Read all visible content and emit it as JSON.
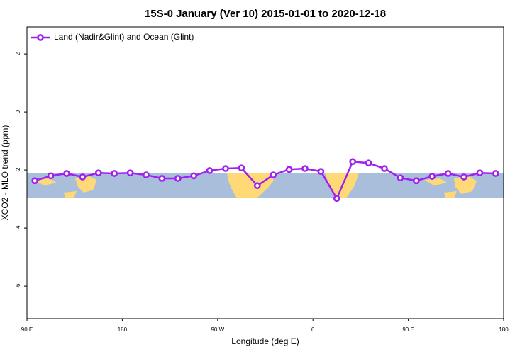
{
  "chart_data": {
    "type": "line",
    "title": "15S-0 January (Ver 10)   2015-01-01 to 2020-12-18",
    "x_label": "Longitude (deg E)",
    "y_label": "XCO2 - MLO trend (ppm)",
    "x": [
      97.5,
      112.5,
      127.5,
      142.5,
      157.5,
      172.5,
      187.5,
      202.5,
      217.5,
      232.5,
      247.5,
      262.5,
      277.5,
      292.5,
      307.5,
      322.5,
      337.5,
      352.5,
      367.5,
      382.5,
      397.5,
      412.5,
      427.5,
      442.5,
      457.5,
      472.5,
      487.5,
      502.5,
      517.5,
      532.5
    ],
    "series": [
      {
        "name": "Land (Nadir&Glint) and Ocean (Glint)",
        "color": "#a020f0",
        "values": [
          -2.37,
          -2.2,
          -2.12,
          -2.24,
          -2.1,
          -2.12,
          -2.1,
          -2.17,
          -2.29,
          -2.29,
          -2.2,
          -2.02,
          -1.95,
          -1.93,
          -2.54,
          -2.17,
          -1.98,
          -1.95,
          -2.05,
          -2.98,
          -1.71,
          -1.76,
          -1.95,
          -2.27,
          -2.37,
          -2.22,
          -2.12,
          -2.24,
          -2.1,
          -2.12
        ]
      }
    ],
    "xlim": [
      90,
      540
    ],
    "ylim": [
      -7.12,
      2.93
    ],
    "xticks": [
      {
        "value": 90,
        "label": "90 E"
      },
      180,
      {
        "value": 270,
        "label": "90 W"
      },
      {
        "value": 360,
        "label": "0"
      },
      {
        "value": 450,
        "label": "90 E"
      },
      {
        "value": 540,
        "label": "180"
      }
    ],
    "yticks": [
      -6,
      -4,
      -2,
      0,
      2
    ],
    "legend": "top-left"
  }
}
